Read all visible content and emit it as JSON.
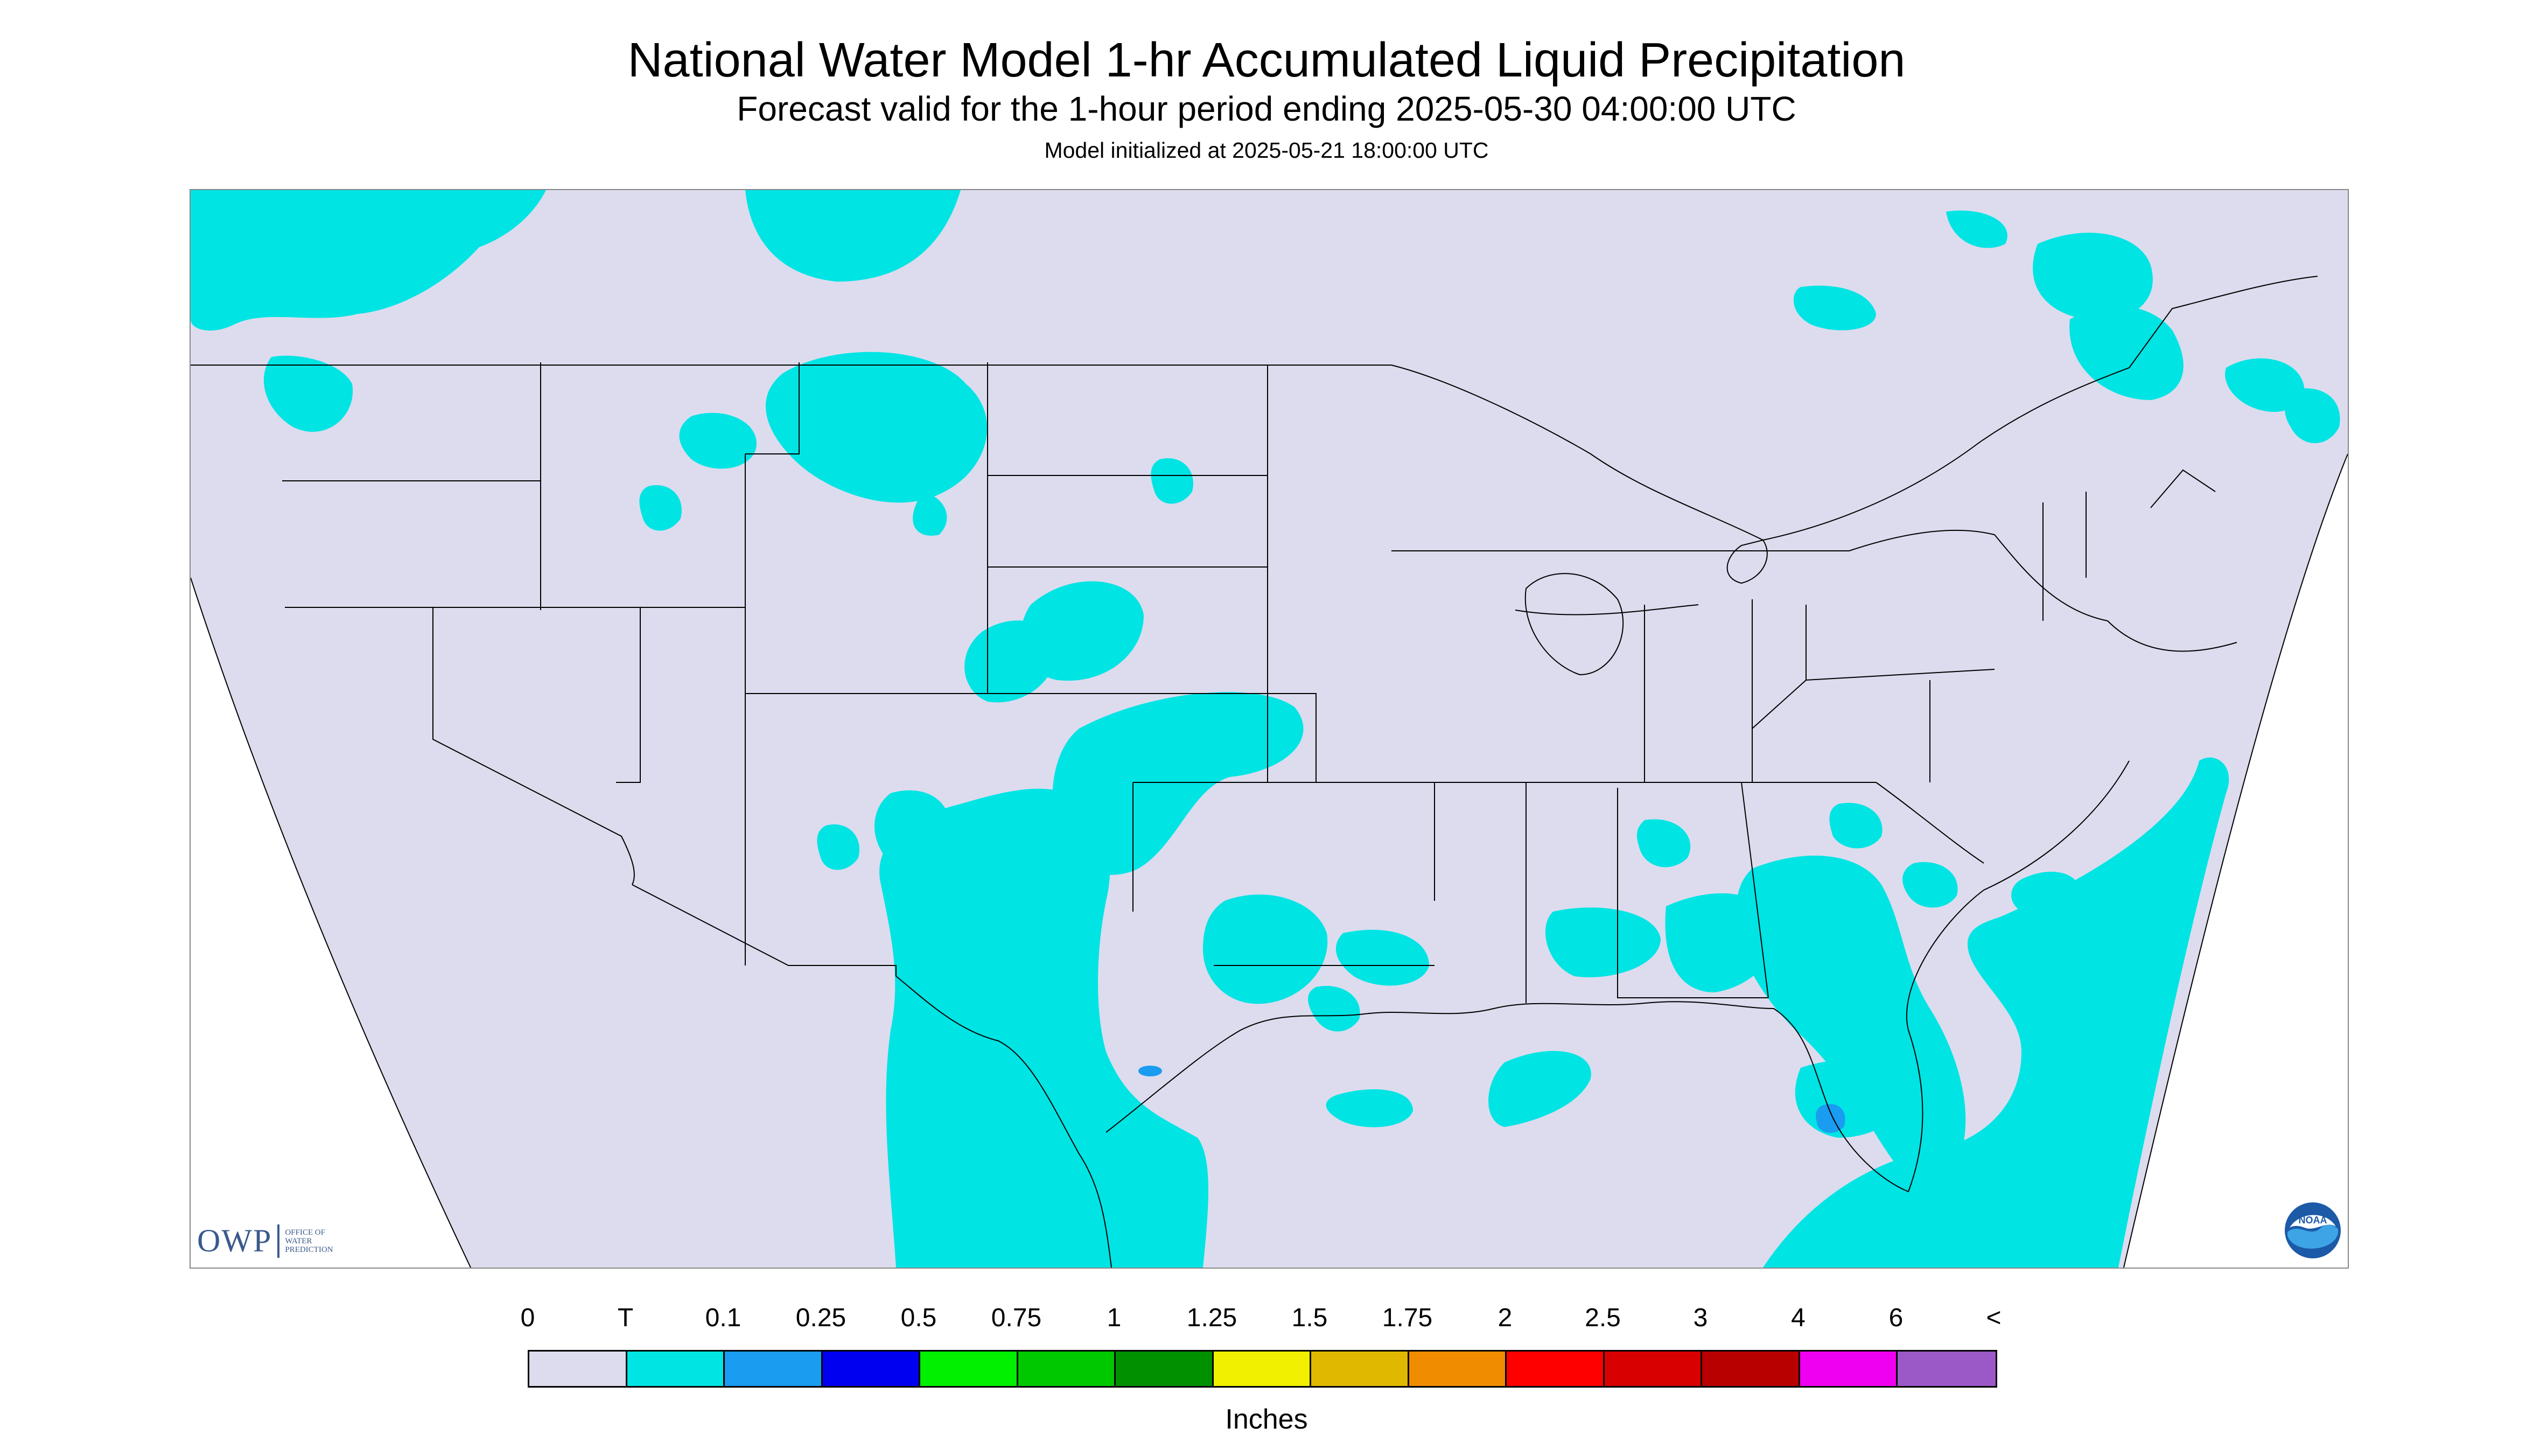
{
  "header": {
    "title": "National Water Model 1-hr Accumulated Liquid Precipitation",
    "subtitle": "Forecast valid for the 1-hour period ending 2025-05-30 04:00:00 UTC",
    "init": "Model initialized at 2025-05-21 18:00:00 UTC"
  },
  "map": {
    "colors": {
      "background": "#dcdcee",
      "trace": "#00e4e4",
      "light": "#1a9cf0",
      "border": "#000000"
    }
  },
  "logos": {
    "owp_main": "OWP",
    "owp_sub": [
      "OFFICE OF",
      "WATER",
      "PREDICTION"
    ],
    "noaa": "NOAA"
  },
  "legend": {
    "labels": [
      "0",
      "T",
      "0.1",
      "0.25",
      "0.5",
      "0.75",
      "1",
      "1.25",
      "1.5",
      "1.75",
      "2",
      "2.5",
      "3",
      "4",
      "6",
      "<"
    ],
    "colors": [
      "#dcdcee",
      "#00e4e4",
      "#1a9cf0",
      "#0000f0",
      "#00f000",
      "#00c800",
      "#009000",
      "#f0f000",
      "#e0b800",
      "#f08c00",
      "#ff0000",
      "#d80000",
      "#b80000",
      "#f000f0",
      "#9b59c8"
    ],
    "units": "Inches"
  }
}
